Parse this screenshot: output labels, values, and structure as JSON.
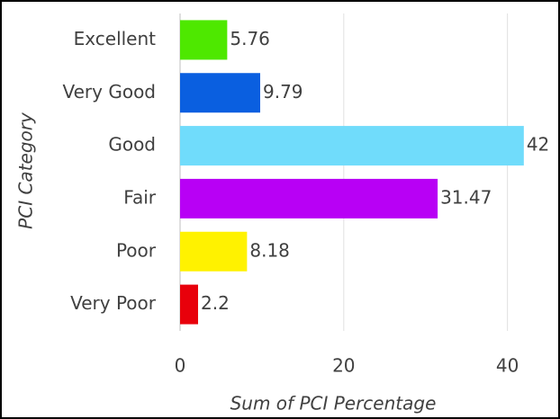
{
  "chart_data": {
    "type": "bar",
    "orientation": "horizontal",
    "x_label": "Sum of PCI Percentage",
    "y_label": "PCI Category",
    "categories": [
      "Excellent",
      "Very Good",
      "Good",
      "Fair",
      "Poor",
      "Very Poor"
    ],
    "values": [
      5.76,
      9.79,
      42,
      31.47,
      8.18,
      2.2
    ],
    "colors": [
      "#4ee800",
      "#0a5fe0",
      "#70dcfb",
      "#b800f5",
      "#fff200",
      "#e8000b"
    ],
    "xlim": [
      0,
      44
    ],
    "xticks": [
      0,
      20,
      40
    ],
    "grid": true
  }
}
